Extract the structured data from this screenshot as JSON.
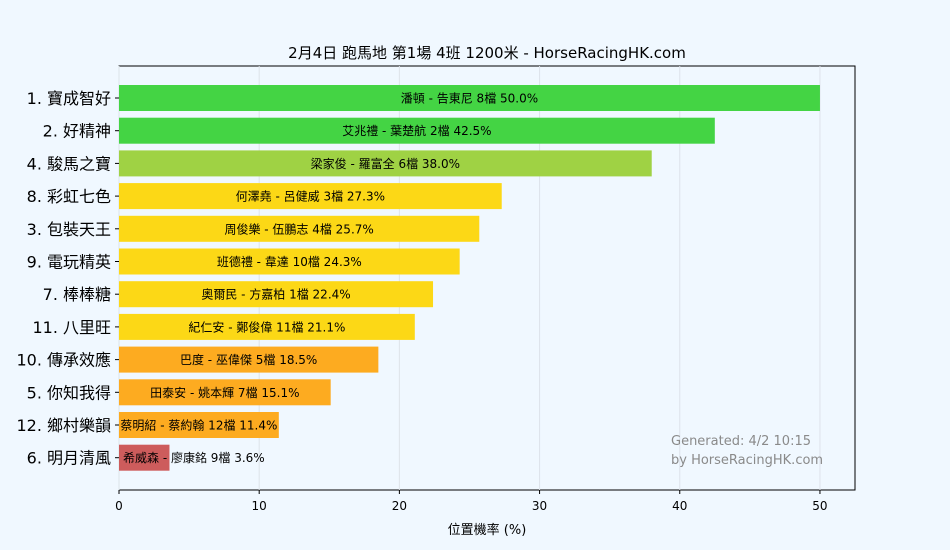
{
  "chart_data": {
    "type": "bar",
    "orientation": "horizontal",
    "title": "2月4日  跑馬地  第1場  4班  1200米 - HorseRacingHK.com",
    "xlabel": "位置機率 (%)",
    "ylabel": "",
    "xlim": [
      0,
      52.5
    ],
    "xticks": [
      0,
      10,
      20,
      30,
      40,
      50
    ],
    "grid": "vertical",
    "categories": [
      "1. 寶成智好",
      "2. 好精神",
      "4. 駿馬之寶",
      "8. 彩虹七色",
      "3. 包裝天王",
      "9. 電玩精英",
      "7. 棒棒糖",
      "11. 八里旺",
      "10. 傳承效應",
      "5. 你知我得",
      "12. 鄉村樂韻",
      "6. 明月清風"
    ],
    "values": [
      50.0,
      42.5,
      38.0,
      27.3,
      25.7,
      24.3,
      22.4,
      21.1,
      18.5,
      15.1,
      11.4,
      3.6
    ],
    "bar_labels": [
      "潘頓 - 告東尼 8檔  50.0%",
      "艾兆禮 - 葉楚航 2檔  42.5%",
      "梁家俊 - 羅富全 6檔  38.0%",
      "何澤堯 - 呂健威 3檔  27.3%",
      "周俊樂 - 伍鵬志 4檔  25.7%",
      "班德禮 - 韋達 10檔  24.3%",
      "奧爾民 - 方嘉柏 1檔  22.4%",
      "紀仁安 - 鄭俊偉 11檔  21.1%",
      "巴度 - 巫偉傑 5檔  18.5%",
      "田泰安 - 姚本輝 7檔  15.1%",
      "蔡明紹 - 蔡約翰 12檔  11.4%",
      "希威森 - 廖康銘 9檔  3.6%"
    ],
    "colors": [
      "#44d444",
      "#44d444",
      "#9fd244",
      "#fcd816",
      "#fcd816",
      "#fcd816",
      "#fcd816",
      "#fcd816",
      "#fdab20",
      "#fdab20",
      "#fdab20",
      "#cd5c5c"
    ],
    "watermark": [
      "Generated: 4/2 10:15",
      "by HorseRacingHK.com"
    ]
  }
}
